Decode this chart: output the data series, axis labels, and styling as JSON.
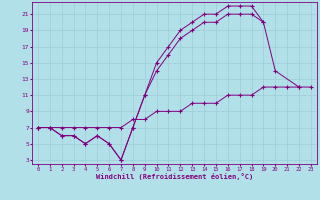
{
  "xlabel": "Windchill (Refroidissement éolien,°C)",
  "background_color": "#b2e0e8",
  "grid_color": "#9ecdd8",
  "line_color": "#800080",
  "xlim": [
    -0.5,
    23.5
  ],
  "ylim": [
    2.5,
    22.5
  ],
  "xticks": [
    0,
    1,
    2,
    3,
    4,
    5,
    6,
    7,
    8,
    9,
    10,
    11,
    12,
    13,
    14,
    15,
    16,
    17,
    18,
    19,
    20,
    21,
    22,
    23
  ],
  "yticks": [
    3,
    5,
    7,
    9,
    11,
    13,
    15,
    17,
    19,
    21
  ],
  "line1_x": [
    0,
    1,
    2,
    3,
    4,
    5,
    6,
    7,
    8,
    9,
    10,
    11,
    12,
    13,
    14,
    15,
    16,
    17,
    18,
    19,
    20,
    22
  ],
  "line1_y": [
    7,
    7,
    6,
    6,
    5,
    6,
    5,
    3,
    7,
    11,
    15,
    17,
    19,
    20,
    21,
    21,
    22,
    22,
    22,
    20,
    14,
    12
  ],
  "line2_x": [
    0,
    1,
    2,
    3,
    4,
    5,
    6,
    7,
    8,
    9,
    10,
    11,
    12,
    13,
    14,
    15,
    16,
    17,
    18,
    19
  ],
  "line2_y": [
    7,
    7,
    6,
    6,
    5,
    6,
    5,
    3,
    7,
    11,
    14,
    16,
    18,
    19,
    20,
    20,
    21,
    21,
    21,
    20
  ],
  "line3_x": [
    0,
    1,
    2,
    3,
    4,
    5,
    6,
    7,
    8,
    9,
    10,
    11,
    12,
    13,
    14,
    15,
    16,
    17,
    18,
    19,
    20,
    21,
    22,
    23
  ],
  "line3_y": [
    7,
    7,
    7,
    7,
    7,
    7,
    7,
    7,
    8,
    8,
    9,
    9,
    9,
    10,
    10,
    10,
    11,
    11,
    11,
    12,
    12,
    12,
    12,
    12
  ]
}
